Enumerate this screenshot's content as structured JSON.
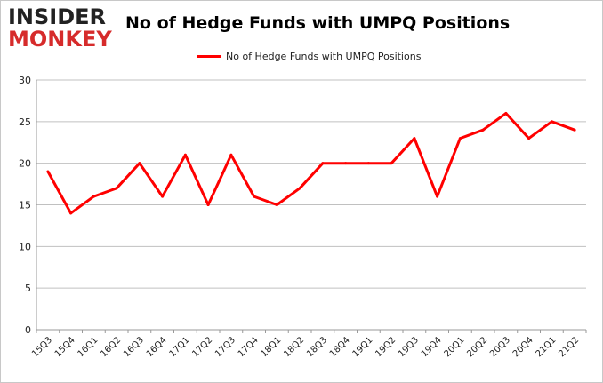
{
  "logo": {
    "line1": "INSIDER",
    "line2": "MONKEY"
  },
  "chart_data": {
    "type": "line",
    "title": "No of Hedge Funds with UMPQ Positions",
    "xlabel": "",
    "ylabel": "",
    "categories": [
      "15Q3",
      "15Q4",
      "16Q1",
      "16Q2",
      "16Q3",
      "16Q4",
      "17Q1",
      "17Q2",
      "17Q3",
      "17Q4",
      "18Q1",
      "18Q2",
      "18Q3",
      "18Q4",
      "19Q1",
      "19Q2",
      "19Q3",
      "19Q4",
      "20Q1",
      "20Q2",
      "20Q3",
      "20Q4",
      "21Q1",
      "21Q2"
    ],
    "series": [
      {
        "name": "No of Hedge Funds with UMPQ Positions",
        "color": "#ff0000",
        "values": [
          19,
          14,
          16,
          17,
          20,
          16,
          21,
          15,
          21,
          16,
          15,
          17,
          20,
          20,
          20,
          20,
          23,
          16,
          23,
          24,
          26,
          23,
          25,
          24
        ]
      }
    ],
    "ylim": [
      0,
      30
    ],
    "yticks": [
      0,
      5,
      10,
      15,
      20,
      25,
      30
    ],
    "grid": true,
    "legend_position": "top-center"
  }
}
